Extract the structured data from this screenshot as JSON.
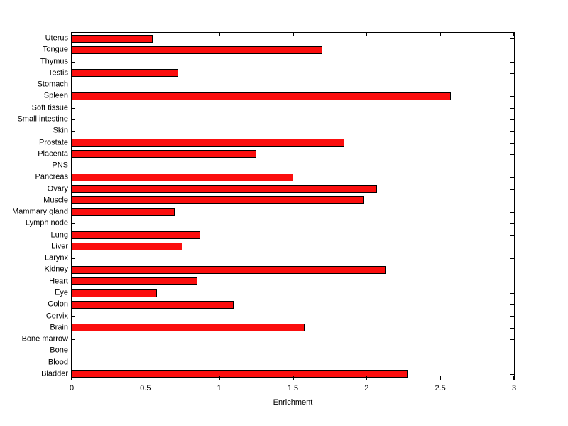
{
  "chart_data": {
    "type": "bar",
    "orientation": "horizontal",
    "title": "",
    "xlabel": "Enrichment",
    "ylabel": "",
    "xlim": [
      0,
      3
    ],
    "xtick_values": [
      0,
      0.5,
      1,
      1.5,
      2,
      2.5,
      3
    ],
    "xtick_labels": [
      "0",
      "0.5",
      "1",
      "1.5",
      "2",
      "2.5",
      "3"
    ],
    "categories": [
      "Uterus",
      "Tongue",
      "Thymus",
      "Testis",
      "Stomach",
      "Spleen",
      "Soft tissue",
      "Small intestine",
      "Skin",
      "Prostate",
      "Placenta",
      "PNS",
      "Pancreas",
      "Ovary",
      "Muscle",
      "Mammary gland",
      "Lymph node",
      "Lung",
      "Liver",
      "Larynx",
      "Kidney",
      "Heart",
      "Eye",
      "Colon",
      "Cervix",
      "Brain",
      "Bone marrow",
      "Bone",
      "Blood",
      "Bladder"
    ],
    "values": [
      0.55,
      1.7,
      0,
      0.72,
      0,
      2.57,
      0,
      0,
      0,
      1.85,
      1.25,
      0,
      1.5,
      2.07,
      1.98,
      0.7,
      0,
      0.87,
      0.75,
      0,
      2.13,
      0.85,
      0.58,
      1.1,
      0,
      1.58,
      0,
      0,
      0,
      2.28
    ],
    "bar_color": "#fb0e0e",
    "bar_edge_color": "#000000",
    "axis_color": "#000000",
    "background": "#ffffff",
    "grid": false,
    "legend": "none"
  }
}
